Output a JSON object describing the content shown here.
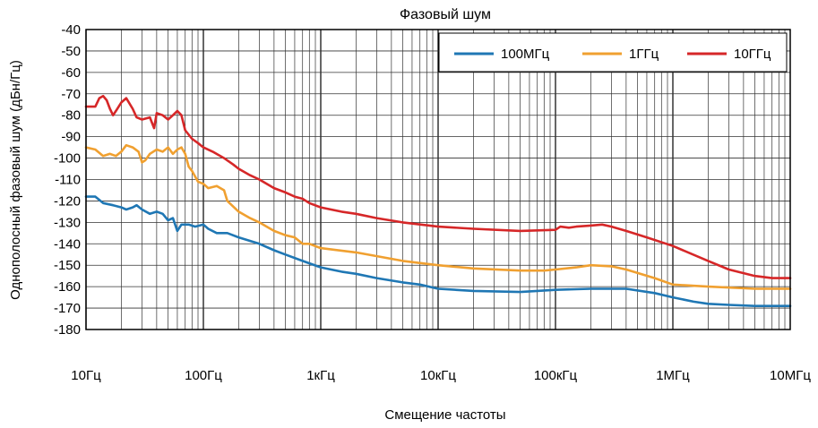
{
  "chart_data": {
    "type": "line",
    "title": "Фазовый шум",
    "xlabel": "Смещение частоты",
    "ylabel": "Однополосный фазовый шум (дБн/Гц)",
    "x_scale": "log",
    "xlim": [
      10,
      10000000
    ],
    "ylim": [
      -180,
      -40
    ],
    "grid": true,
    "legend_position": "top-right",
    "x_ticks": [
      {
        "value": 10,
        "label": "10Гц"
      },
      {
        "value": 100,
        "label": "100Гц"
      },
      {
        "value": 1000,
        "label": "1кГц"
      },
      {
        "value": 10000,
        "label": "10кГц"
      },
      {
        "value": 100000,
        "label": "100кГц"
      },
      {
        "value": 1000000,
        "label": "1МГц"
      },
      {
        "value": 10000000,
        "label": "10МГц"
      }
    ],
    "y_ticks": [
      {
        "value": -40,
        "label": "-40"
      },
      {
        "value": -50,
        "label": "-50"
      },
      {
        "value": -60,
        "label": "-60"
      },
      {
        "value": -70,
        "label": "-70"
      },
      {
        "value": -80,
        "label": "-80"
      },
      {
        "value": -90,
        "label": "-90"
      },
      {
        "value": -100,
        "label": "-100"
      },
      {
        "value": -110,
        "label": "-110"
      },
      {
        "value": -120,
        "label": "-120"
      },
      {
        "value": -130,
        "label": "-130"
      },
      {
        "value": -140,
        "label": "-140"
      },
      {
        "value": -150,
        "label": "-150"
      },
      {
        "value": -160,
        "label": "-160"
      },
      {
        "value": -170,
        "label": "-170"
      },
      {
        "value": -180,
        "label": "-180"
      }
    ],
    "series": [
      {
        "name": "100МГц",
        "color": "#1f77b4",
        "points": [
          [
            10,
            -118
          ],
          [
            12,
            -118
          ],
          [
            14,
            -121
          ],
          [
            17,
            -122
          ],
          [
            20,
            -123
          ],
          [
            22,
            -124
          ],
          [
            25,
            -123
          ],
          [
            27,
            -122
          ],
          [
            30,
            -124
          ],
          [
            35,
            -126
          ],
          [
            40,
            -125
          ],
          [
            45,
            -126
          ],
          [
            50,
            -129
          ],
          [
            55,
            -128
          ],
          [
            60,
            -134
          ],
          [
            65,
            -131
          ],
          [
            75,
            -131
          ],
          [
            85,
            -132
          ],
          [
            100,
            -131
          ],
          [
            110,
            -133
          ],
          [
            130,
            -135
          ],
          [
            160,
            -135
          ],
          [
            200,
            -137
          ],
          [
            300,
            -140
          ],
          [
            400,
            -143
          ],
          [
            500,
            -145
          ],
          [
            700,
            -148
          ],
          [
            1000,
            -151
          ],
          [
            1500,
            -153
          ],
          [
            2000,
            -154
          ],
          [
            3000,
            -156
          ],
          [
            5000,
            -158
          ],
          [
            7000,
            -159
          ],
          [
            10000,
            -161
          ],
          [
            20000,
            -162
          ],
          [
            50000,
            -162.5
          ],
          [
            70000,
            -162
          ],
          [
            100000,
            -161.5
          ],
          [
            200000,
            -161
          ],
          [
            400000,
            -161
          ],
          [
            700000,
            -163
          ],
          [
            1000000,
            -165
          ],
          [
            1500000,
            -167
          ],
          [
            2000000,
            -168
          ],
          [
            3000000,
            -168.5
          ],
          [
            5000000,
            -169
          ],
          [
            10000000,
            -169
          ]
        ]
      },
      {
        "name": "1ГГц",
        "color": "#f0a030",
        "points": [
          [
            10,
            -95
          ],
          [
            12,
            -96
          ],
          [
            14,
            -99
          ],
          [
            16,
            -98
          ],
          [
            18,
            -99
          ],
          [
            20,
            -97
          ],
          [
            22,
            -94
          ],
          [
            25,
            -95
          ],
          [
            28,
            -97
          ],
          [
            30,
            -102
          ],
          [
            32,
            -101
          ],
          [
            35,
            -98
          ],
          [
            40,
            -96
          ],
          [
            45,
            -97
          ],
          [
            50,
            -95
          ],
          [
            55,
            -98
          ],
          [
            60,
            -96
          ],
          [
            65,
            -95
          ],
          [
            70,
            -98
          ],
          [
            75,
            -104
          ],
          [
            80,
            -106
          ],
          [
            90,
            -111
          ],
          [
            100,
            -112
          ],
          [
            110,
            -114
          ],
          [
            130,
            -113
          ],
          [
            150,
            -115
          ],
          [
            160,
            -120
          ],
          [
            200,
            -125
          ],
          [
            250,
            -128
          ],
          [
            300,
            -130
          ],
          [
            400,
            -134
          ],
          [
            500,
            -136
          ],
          [
            600,
            -137
          ],
          [
            700,
            -140
          ],
          [
            800,
            -140
          ],
          [
            1000,
            -142
          ],
          [
            2000,
            -144
          ],
          [
            5000,
            -148
          ],
          [
            10000,
            -150
          ],
          [
            20000,
            -151.5
          ],
          [
            50000,
            -152.5
          ],
          [
            80000,
            -152.5
          ],
          [
            100000,
            -152
          ],
          [
            150000,
            -151
          ],
          [
            200000,
            -150
          ],
          [
            300000,
            -150.5
          ],
          [
            400000,
            -152
          ],
          [
            700000,
            -156
          ],
          [
            1000000,
            -159
          ],
          [
            2000000,
            -160
          ],
          [
            5000000,
            -161
          ],
          [
            10000000,
            -161
          ]
        ]
      },
      {
        "name": "10ГГц",
        "color": "#d62728",
        "points": [
          [
            10,
            -76
          ],
          [
            12,
            -76
          ],
          [
            13,
            -72
          ],
          [
            14,
            -71
          ],
          [
            15,
            -73
          ],
          [
            16,
            -77
          ],
          [
            17,
            -80
          ],
          [
            18,
            -78
          ],
          [
            20,
            -74
          ],
          [
            22,
            -72
          ],
          [
            25,
            -77
          ],
          [
            27,
            -81
          ],
          [
            30,
            -82
          ],
          [
            35,
            -81
          ],
          [
            38,
            -86
          ],
          [
            40,
            -79
          ],
          [
            45,
            -80
          ],
          [
            50,
            -82
          ],
          [
            55,
            -80
          ],
          [
            60,
            -78
          ],
          [
            65,
            -80
          ],
          [
            70,
            -87
          ],
          [
            80,
            -91
          ],
          [
            90,
            -93
          ],
          [
            100,
            -95
          ],
          [
            120,
            -97
          ],
          [
            150,
            -100
          ],
          [
            180,
            -103
          ],
          [
            200,
            -105
          ],
          [
            250,
            -108
          ],
          [
            300,
            -110
          ],
          [
            400,
            -114
          ],
          [
            500,
            -116
          ],
          [
            600,
            -118
          ],
          [
            700,
            -119
          ],
          [
            800,
            -121
          ],
          [
            1000,
            -123
          ],
          [
            1500,
            -125
          ],
          [
            2000,
            -126
          ],
          [
            3000,
            -128
          ],
          [
            5000,
            -130
          ],
          [
            10000,
            -132
          ],
          [
            20000,
            -133
          ],
          [
            50000,
            -134
          ],
          [
            100000,
            -133.5
          ],
          [
            110000,
            -132
          ],
          [
            130000,
            -132.5
          ],
          [
            150000,
            -132
          ],
          [
            200000,
            -131.5
          ],
          [
            250000,
            -131
          ],
          [
            300000,
            -132
          ],
          [
            400000,
            -134
          ],
          [
            600000,
            -137
          ],
          [
            1000000,
            -141
          ],
          [
            2000000,
            -148
          ],
          [
            3000000,
            -152
          ],
          [
            5000000,
            -155
          ],
          [
            7000000,
            -156
          ],
          [
            10000000,
            -156
          ]
        ]
      }
    ]
  }
}
